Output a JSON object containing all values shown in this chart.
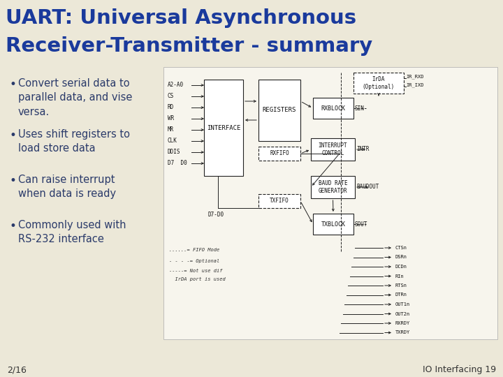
{
  "title_line1": "UART: Universal Asynchronous",
  "title_line2": "Receiver-Transmitter - summary",
  "title_color": "#1a3a9c",
  "background_color": "#ece8d8",
  "bullet_color": "#2a3a6a",
  "bullet_points": [
    "Convert serial data to\nparallel data, and vise\nversa.",
    "Uses shift registers to\nload store data",
    "Can raise interrupt\nwhen data is ready",
    "Commonly used with\nRS-232 interface"
  ],
  "footer_left": "2/16",
  "footer_right": "IO Interfacing 19",
  "footer_color": "#333333",
  "signals_left": [
    "A2-A0",
    "CS",
    "RD",
    "WR",
    "MR",
    "CLK",
    "DDIS",
    "D7  D0"
  ],
  "right_sigs": [
    "CTSn",
    "DSRn",
    "DCDn",
    "RIn",
    "RTSn",
    "DTRn",
    "OUT1n",
    "OUT2n",
    "RXRDY",
    "TXRDY"
  ]
}
